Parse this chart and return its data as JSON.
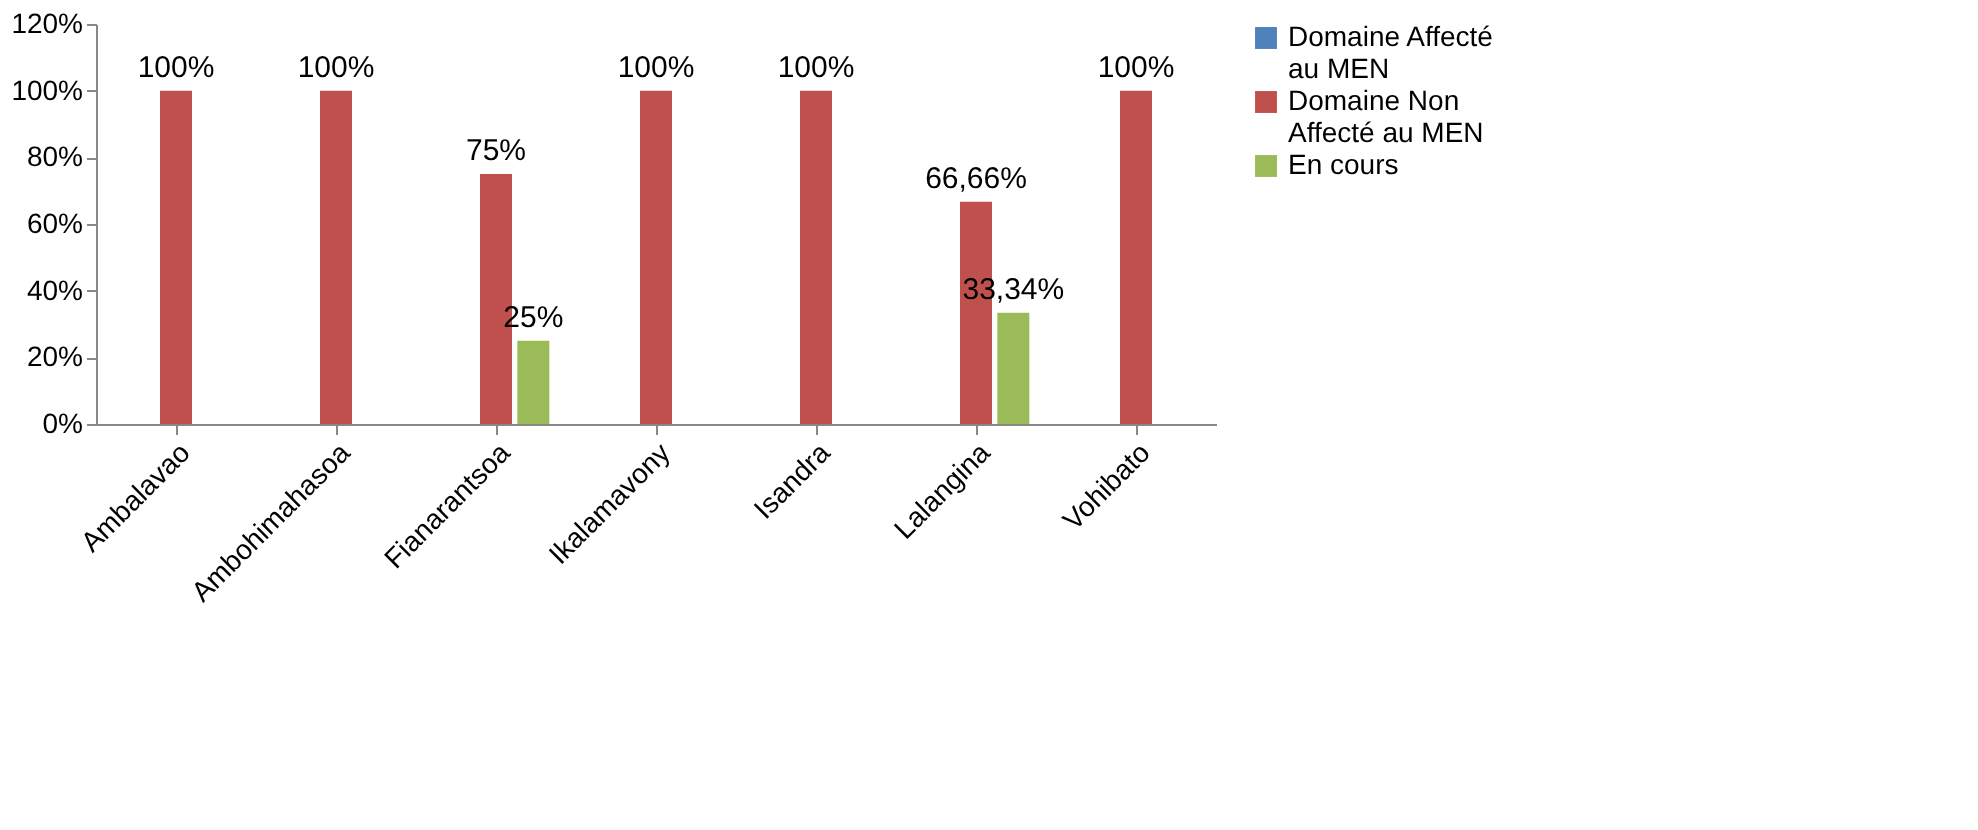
{
  "chart_data": {
    "type": "bar",
    "categories": [
      "Ambalavao",
      "Ambohimahasoa",
      "Fianarantsoa",
      "Ikalamavony",
      "Isandra",
      "Lalangina",
      "Vohibato"
    ],
    "series": [
      {
        "name": "Domaine Affecté au MEN",
        "color": "#4f81bd",
        "values": [
          null,
          null,
          null,
          null,
          null,
          null,
          null
        ]
      },
      {
        "name": "Domaine Non Affecté au MEN",
        "color": "#c0504d",
        "values": [
          100,
          100,
          75,
          100,
          100,
          66.66,
          100
        ],
        "value_labels": [
          "100%",
          "100%",
          "75%",
          "100%",
          "100%",
          "66,66%",
          "100%"
        ]
      },
      {
        "name": "En cours",
        "color": "#9bbb59",
        "values": [
          null,
          null,
          25,
          null,
          null,
          33.34,
          null
        ],
        "value_labels": [
          null,
          null,
          "25%",
          null,
          null,
          "33,34%",
          null
        ]
      }
    ],
    "ylim": [
      0,
      120
    ],
    "yticks": [
      {
        "value": 0,
        "label": "0%"
      },
      {
        "value": 20,
        "label": "20%"
      },
      {
        "value": 40,
        "label": "40%"
      },
      {
        "value": 60,
        "label": "60%"
      },
      {
        "value": 80,
        "label": "80%"
      },
      {
        "value": 100,
        "label": "100%"
      },
      {
        "value": 120,
        "label": "120%"
      }
    ],
    "grid": false,
    "legend": "right"
  }
}
